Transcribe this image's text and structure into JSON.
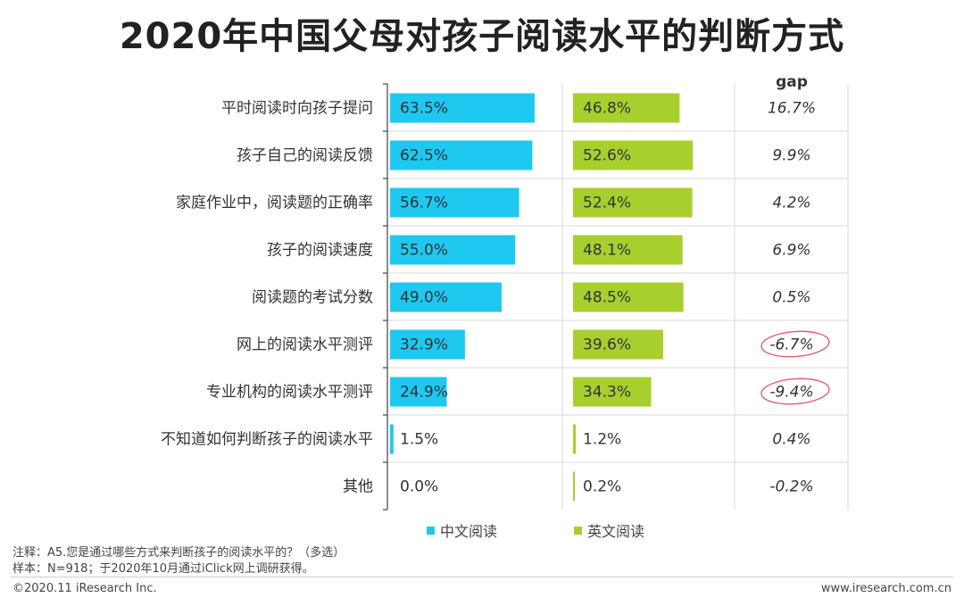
{
  "title": "2020年中国父母对孩子阅读水平的判断方式",
  "colors": {
    "chinese": "#1ec8f0",
    "english": "#a8cf2e",
    "circle": "#e0606a",
    "grid": "#d9d9d9"
  },
  "chart_data": {
    "type": "bar",
    "categories": [
      "平时阅读时向孩子提问",
      "孩子自己的阅读反馈",
      "家庭作业中，阅读题的正确率",
      "孩子的阅读速度",
      "阅读题的考试分数",
      "网上的阅读水平测评",
      "专业机构的阅读水平测评",
      "不知道如何判断孩子的阅读水平",
      "其他"
    ],
    "series": [
      {
        "name": "中文阅读",
        "values": [
          63.5,
          62.5,
          56.7,
          55.0,
          49.0,
          32.9,
          24.9,
          1.5,
          0.0
        ],
        "labels": [
          "63.5%",
          "62.5%",
          "56.7%",
          "55.0%",
          "49.0%",
          "32.9%",
          "24.9%",
          "1.5%",
          "0.0%"
        ]
      },
      {
        "name": "英文阅读",
        "values": [
          46.8,
          52.6,
          52.4,
          48.1,
          48.5,
          39.6,
          34.3,
          1.2,
          0.2
        ],
        "labels": [
          "46.8%",
          "52.6%",
          "52.4%",
          "48.1%",
          "48.5%",
          "39.6%",
          "34.3%",
          "1.2%",
          "0.2%"
        ]
      }
    ],
    "gap_header": "gap",
    "gap": [
      16.7,
      9.9,
      4.2,
      6.9,
      0.5,
      -6.7,
      -9.4,
      0.4,
      -0.2
    ],
    "gap_labels": [
      "16.7%",
      "9.9%",
      "4.2%",
      "6.9%",
      "0.5%",
      "-6.7%",
      "-9.4%",
      "0.4%",
      "-0.2%"
    ],
    "circled_gap": [
      5,
      6
    ],
    "legend": [
      "中文阅读",
      "英文阅读"
    ],
    "legend_position": "bottom"
  },
  "notes": {
    "line1": "注释：A5.您是通过哪些方式来判断孩子的阅读水平的？（多选）",
    "line2": "样本：N=918；于2020年10月通过iClick网上调研获得。"
  },
  "footer": {
    "copyright": "©2020.11 iResearch Inc.",
    "website": "www.iresearch.com.cn"
  }
}
